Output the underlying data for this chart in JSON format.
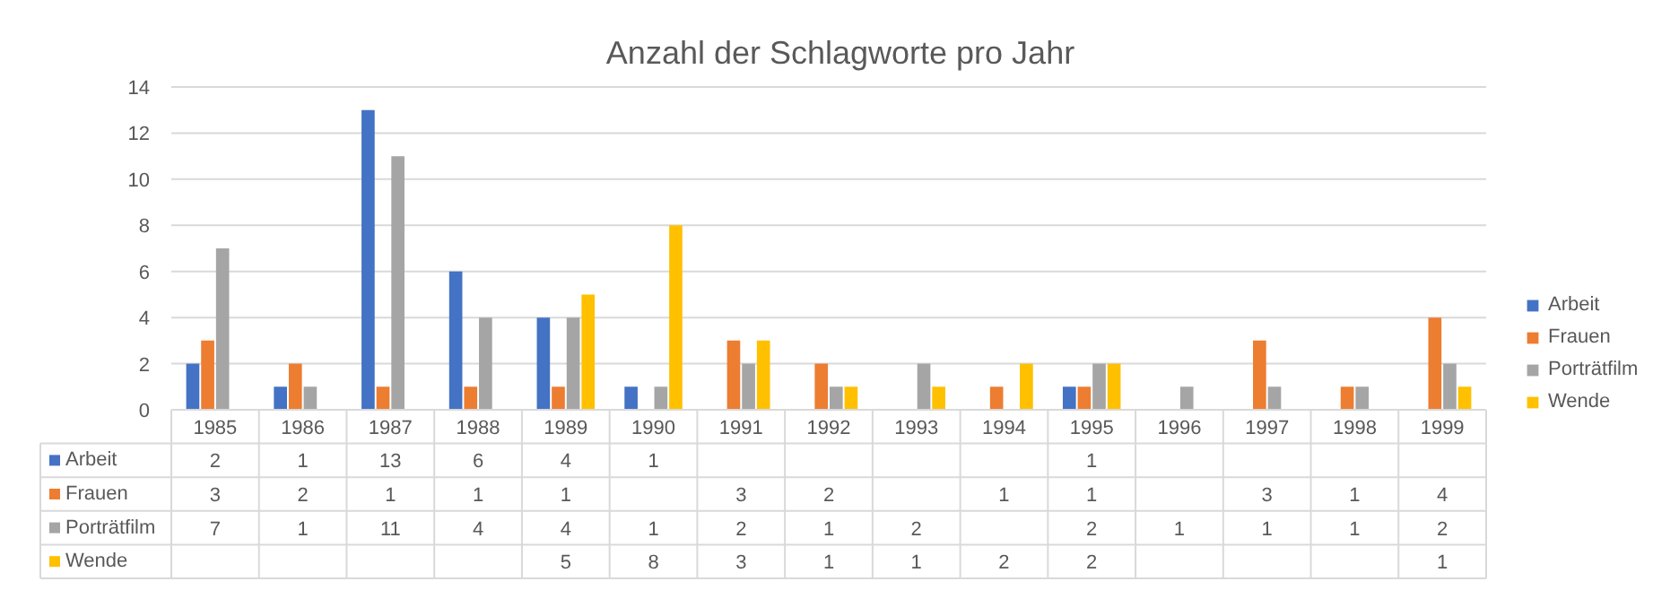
{
  "chart_data": {
    "type": "bar",
    "title": "Anzahl der Schlagworte pro Jahr",
    "categories": [
      "1985",
      "1986",
      "1987",
      "1988",
      "1989",
      "1990",
      "1991",
      "1992",
      "1993",
      "1994",
      "1995",
      "1996",
      "1997",
      "1998",
      "1999"
    ],
    "series": [
      {
        "name": "Arbeit",
        "color": "#4472c4",
        "values": [
          2,
          1,
          13,
          6,
          4,
          1,
          null,
          null,
          null,
          null,
          1,
          null,
          null,
          null,
          null
        ]
      },
      {
        "name": "Frauen",
        "color": "#ed7d31",
        "values": [
          3,
          2,
          1,
          1,
          1,
          null,
          3,
          2,
          null,
          1,
          1,
          null,
          3,
          1,
          4
        ]
      },
      {
        "name": "Porträtfilm",
        "color": "#a5a5a5",
        "values": [
          7,
          1,
          11,
          4,
          4,
          1,
          2,
          1,
          2,
          null,
          2,
          1,
          1,
          1,
          2
        ]
      },
      {
        "name": "Wende",
        "color": "#ffc000",
        "values": [
          null,
          null,
          null,
          null,
          5,
          8,
          3,
          1,
          1,
          2,
          2,
          null,
          null,
          null,
          1
        ]
      }
    ],
    "ylim": [
      0,
      14
    ],
    "yticks": [
      0,
      2,
      4,
      6,
      8,
      10,
      12,
      14
    ],
    "grid": "y",
    "legend": "right",
    "data_labels": true
  }
}
